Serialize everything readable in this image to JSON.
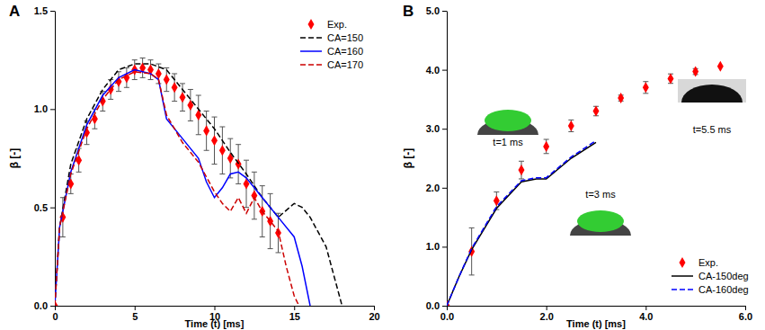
{
  "chart_data": [
    {
      "type": "line",
      "title": "A",
      "xlabel": "Time (t) [ms]",
      "ylabel": "β [-]",
      "xlim": [
        0,
        20
      ],
      "xticks": [
        0,
        5,
        10,
        15,
        20
      ],
      "ylim": [
        0,
        1.5
      ],
      "yticks": [
        {
          "value": 0,
          "label": "0.0"
        },
        {
          "value": 0.5,
          "label": "0.5"
        },
        {
          "value": 1,
          "label": "1.0"
        },
        {
          "value": 1.5,
          "label": "1.5"
        }
      ],
      "grid": false,
      "legend": "top-right",
      "series": [
        {
          "name": "Exp.",
          "type": "scatter",
          "marker": "diamond",
          "color": "#ff0000",
          "x": [
            0,
            0.5,
            1,
            1.5,
            2,
            2.5,
            3,
            3.5,
            4,
            4.5,
            5,
            5.5,
            6,
            6.5,
            7,
            7.5,
            8,
            8.5,
            9,
            9.5,
            10,
            10.5,
            11,
            11.5,
            12,
            12.5,
            13,
            13.5,
            14
          ],
          "values": [
            0,
            0.45,
            0.62,
            0.74,
            0.88,
            0.95,
            1.04,
            1.1,
            1.14,
            1.16,
            1.2,
            1.21,
            1.2,
            1.18,
            1.15,
            1.11,
            1.06,
            1.02,
            0.97,
            0.89,
            0.84,
            0.79,
            0.75,
            0.72,
            0.62,
            0.56,
            0.48,
            0.43,
            0.37
          ],
          "errors": [
            null,
            0.1,
            0.05,
            0.06,
            0.06,
            0.05,
            0.05,
            0.05,
            0.05,
            0.05,
            0.05,
            0.05,
            0.05,
            0.05,
            0.06,
            0.07,
            0.07,
            0.08,
            0.1,
            0.1,
            0.12,
            0.12,
            0.1,
            0.1,
            0.12,
            0.12,
            0.13,
            0.14,
            0.1
          ]
        },
        {
          "name": "CA=150",
          "type": "line",
          "line_style": "dashed",
          "color": "#000000",
          "x": [
            0,
            0.3,
            1,
            2,
            3,
            4,
            5,
            6,
            7,
            8,
            9,
            10,
            11,
            12,
            13,
            14,
            15,
            15.5,
            16,
            17,
            17.5,
            18
          ],
          "values": [
            0,
            0.4,
            0.72,
            0.95,
            1.1,
            1.2,
            1.23,
            1.23,
            1.2,
            1.1,
            1.0,
            0.9,
            0.78,
            0.67,
            0.55,
            0.45,
            0.52,
            0.5,
            0.45,
            0.3,
            0.15,
            0
          ]
        },
        {
          "name": "CA=160",
          "type": "line",
          "line_style": "solid",
          "color": "#0000ff",
          "x": [
            0,
            0.3,
            1,
            2,
            3,
            4,
            5,
            6,
            6.5,
            7,
            8,
            9,
            9.5,
            10,
            10.5,
            11,
            11.5,
            12,
            13,
            14,
            15,
            15.5,
            16
          ],
          "values": [
            0,
            0.4,
            0.68,
            0.92,
            1.07,
            1.16,
            1.2,
            1.18,
            1.15,
            0.95,
            0.85,
            0.75,
            0.63,
            0.55,
            0.6,
            0.67,
            0.68,
            0.65,
            0.55,
            0.45,
            0.35,
            0.2,
            0
          ]
        },
        {
          "name": "CA=170",
          "type": "line",
          "line_style": "dashed",
          "color": "#cc0000",
          "x": [
            0,
            0.3,
            1,
            2,
            3,
            4,
            5,
            6,
            6.5,
            7,
            8,
            9,
            10,
            10.5,
            11,
            11.5,
            12,
            12.5,
            13,
            14,
            14.5,
            15,
            15.3
          ],
          "values": [
            0,
            0.4,
            0.67,
            0.9,
            1.05,
            1.15,
            1.19,
            1.18,
            1.15,
            0.97,
            0.83,
            0.73,
            0.58,
            0.52,
            0.48,
            0.55,
            0.47,
            0.55,
            0.48,
            0.38,
            0.2,
            0.05,
            0
          ]
        }
      ]
    },
    {
      "type": "line",
      "title": "B",
      "xlabel": "Time (t) [ms]",
      "ylabel": "β [-]",
      "xlim": [
        0,
        6
      ],
      "xticks": [
        {
          "value": 0,
          "label": "0.0"
        },
        {
          "value": 2,
          "label": "2.0"
        },
        {
          "value": 4,
          "label": "4.0"
        },
        {
          "value": 6,
          "label": "6.0"
        }
      ],
      "ylim": [
        0,
        5
      ],
      "yticks": [
        {
          "value": 0,
          "label": "0.0"
        },
        {
          "value": 1,
          "label": "1.0"
        },
        {
          "value": 2,
          "label": "2.0"
        },
        {
          "value": 3,
          "label": "3.0"
        },
        {
          "value": 4,
          "label": "4.0"
        },
        {
          "value": 5,
          "label": "5.0"
        }
      ],
      "grid": false,
      "legend": "bottom-right",
      "annotations": [
        "t=1 ms",
        "t=3 ms",
        "t=5.5 ms"
      ],
      "series": [
        {
          "name": "Exp.",
          "type": "scatter",
          "marker": "diamond",
          "color": "#ff0000",
          "x": [
            0,
            0.5,
            1,
            1.5,
            2,
            2.5,
            3,
            3.5,
            4,
            4.5,
            5,
            5.5
          ],
          "values": [
            0,
            0.92,
            1.78,
            2.3,
            2.7,
            3.05,
            3.3,
            3.52,
            3.7,
            3.85,
            3.97,
            4.06
          ],
          "errors": [
            null,
            0.4,
            0.15,
            0.15,
            0.12,
            0.1,
            0.08,
            0.05,
            0.1,
            0.08,
            0.05,
            null
          ]
        },
        {
          "name": "CA-150deg",
          "type": "line",
          "line_style": "solid",
          "color": "#000000",
          "x": [
            0,
            0.25,
            0.5,
            1,
            1.5,
            1.8,
            2,
            2.5,
            3
          ],
          "values": [
            0,
            0.5,
            0.95,
            1.65,
            2.1,
            2.15,
            2.15,
            2.5,
            2.77
          ]
        },
        {
          "name": "CA-160deg",
          "type": "line",
          "line_style": "dashed",
          "color": "#0000ff",
          "x": [
            0,
            0.25,
            0.5,
            1,
            1.5,
            1.8,
            2,
            2.5,
            3
          ],
          "values": [
            0,
            0.5,
            0.97,
            1.68,
            2.12,
            2.17,
            2.17,
            2.52,
            2.8
          ]
        }
      ]
    }
  ]
}
